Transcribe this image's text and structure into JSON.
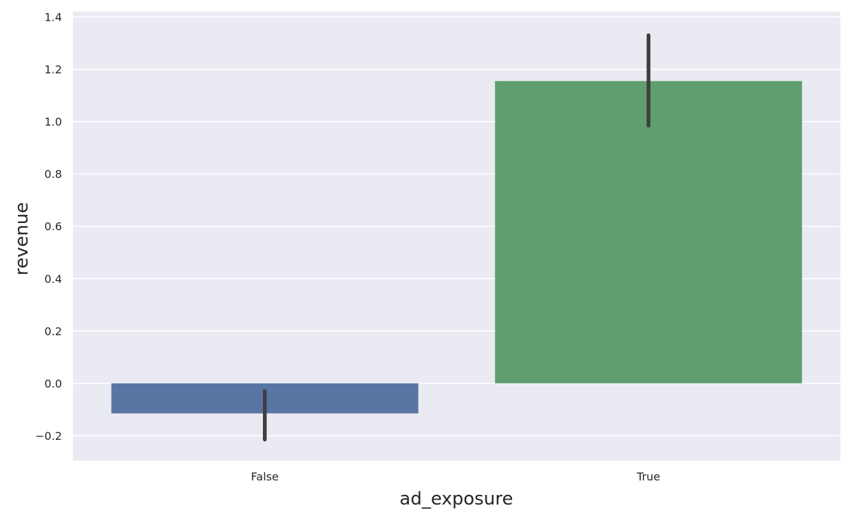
{
  "chart_data": {
    "type": "bar",
    "title": "",
    "xlabel": "ad_exposure",
    "ylabel": "revenue",
    "categories": [
      "False",
      "True"
    ],
    "values": [
      -0.115,
      1.155
    ],
    "error_bars": [
      {
        "low": -0.215,
        "high": -0.03
      },
      {
        "low": 0.985,
        "high": 1.33
      }
    ],
    "ylim": [
      -0.295,
      1.42
    ],
    "yticks": [
      -0.2,
      0.0,
      0.2,
      0.4,
      0.6,
      0.8,
      1.0,
      1.2,
      1.4
    ],
    "ytick_labels": [
      "−0.2",
      "0.0",
      "0.2",
      "0.4",
      "0.6",
      "0.8",
      "1.0",
      "1.2",
      "1.4"
    ],
    "grid": true,
    "colors": {
      "background": "#eaeaf2",
      "grid": "#ffffff",
      "error_bar": "#3f3f3f",
      "bars": [
        "#5975a4",
        "#5f9e6e"
      ]
    }
  }
}
